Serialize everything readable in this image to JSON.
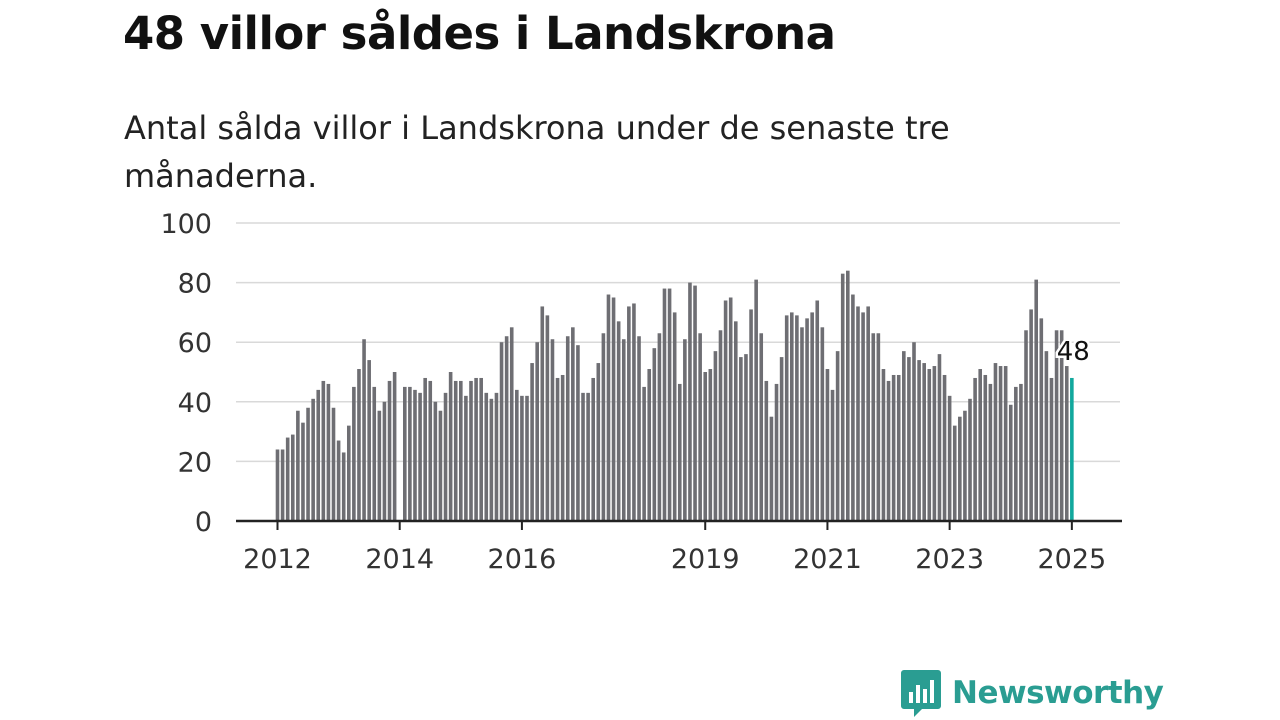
{
  "header": {
    "title": "48 villor såldes i Landskrona",
    "subtitle": "Antal sålda villor i Landskrona under de senaste tre månaderna."
  },
  "brand": {
    "name": "Newsworthy",
    "color": "#2a9d92"
  },
  "colors": {
    "bar": "#6e6e73",
    "highlight": "#12a89d",
    "grid": "#d9d9d9",
    "axis": "#222222"
  },
  "chart_data": {
    "type": "bar",
    "x_start": "2012-01",
    "x_end": "2025-02",
    "x_ticks": [
      "2012",
      "2014",
      "2016",
      "2019",
      "2021",
      "2023",
      "2025"
    ],
    "y_ticks": [
      "0",
      "20",
      "40",
      "60",
      "80",
      "100"
    ],
    "ylim": [
      0,
      100
    ],
    "grid": true,
    "highlight_label": "48",
    "series": [
      {
        "values": [
          24,
          24,
          28,
          29,
          37,
          33,
          38,
          41,
          44,
          47,
          46,
          38,
          27,
          23,
          32,
          45,
          51,
          61,
          54,
          45,
          37,
          40,
          47,
          50,
          0,
          45,
          45,
          44,
          43,
          48,
          47,
          40,
          37,
          43,
          50,
          47,
          47,
          42,
          47,
          48,
          48,
          43,
          41,
          43,
          60,
          62,
          65,
          44,
          42,
          42,
          53,
          60,
          72,
          69,
          61,
          48,
          49,
          62,
          65,
          59,
          43,
          43,
          48,
          53,
          63,
          76,
          75,
          67,
          61,
          72,
          73,
          62,
          45,
          51,
          58,
          63,
          78,
          78,
          70,
          46,
          61,
          80,
          79,
          63,
          50,
          51,
          57,
          64,
          74,
          75,
          67,
          55,
          56,
          71,
          81,
          63,
          47,
          35,
          46,
          55,
          69,
          70,
          69,
          65,
          68,
          70,
          74,
          65,
          51,
          44,
          57,
          83,
          84,
          76,
          72,
          70,
          72,
          63,
          63,
          51,
          47,
          49,
          49,
          57,
          55,
          60,
          54,
          53,
          51,
          52,
          56,
          49,
          42,
          32,
          35,
          37,
          41,
          48,
          51,
          49,
          46,
          53,
          52,
          52,
          39,
          45,
          46,
          64,
          71,
          81,
          68,
          57,
          48,
          64,
          64,
          52,
          48
        ]
      }
    ]
  }
}
